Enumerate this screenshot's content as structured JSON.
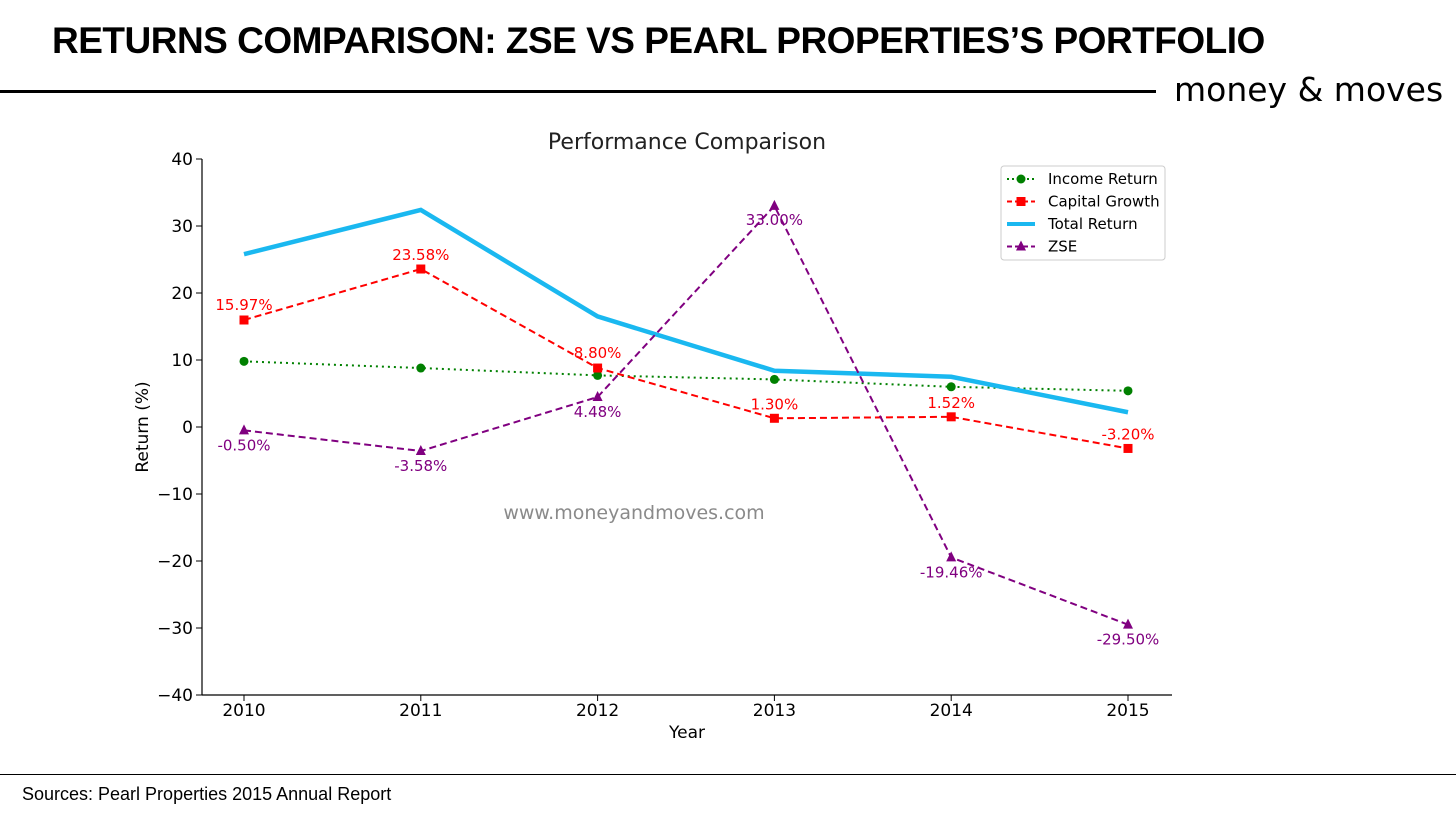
{
  "header": {
    "title": "RETURNS COMPARISON: ZSE VS PEARL PROPERTIES’S PORTFOLIO",
    "brand": "money & moves",
    "brand_accent_color": "#1a8fd6"
  },
  "footer": {
    "sources": "Sources: Pearl Properties 2015 Annual Report"
  },
  "watermark": "www.moneyandmoves.com",
  "chart_data": {
    "type": "line",
    "title": "Performance Comparison",
    "xlabel": "Year",
    "ylabel": "Return (%)",
    "categories": [
      "2010",
      "2011",
      "2012",
      "2013",
      "2014",
      "2015"
    ],
    "ylim": [
      -40,
      40
    ],
    "yticks": [
      "40",
      "30",
      "20",
      "10",
      "0",
      "−10",
      "−20",
      "−30",
      "−40"
    ],
    "ytick_values": [
      40,
      30,
      20,
      10,
      0,
      -10,
      -20,
      -30,
      -40
    ],
    "grid": false,
    "legend_position": "top-right",
    "series": [
      {
        "name": "Income Return",
        "values": [
          9.8,
          8.8,
          7.7,
          7.1,
          6.0,
          5.4
        ],
        "color": "#008000",
        "line_style": "dotted",
        "marker": "circle",
        "data_labels": []
      },
      {
        "name": "Capital Growth",
        "values": [
          15.97,
          23.58,
          8.8,
          1.3,
          1.52,
          -3.2
        ],
        "color": "#ff0000",
        "line_style": "dashed",
        "marker": "square",
        "data_labels": [
          "15.97%",
          "23.58%",
          "8.80%",
          "1.30%",
          "1.52%",
          "-3.20%"
        ]
      },
      {
        "name": "Total Return",
        "values": [
          25.8,
          32.4,
          16.5,
          8.4,
          7.5,
          2.2
        ],
        "color": "#1ab8f0",
        "line_style": "solid",
        "marker": "none",
        "data_labels": []
      },
      {
        "name": "ZSE",
        "values": [
          -0.5,
          -3.58,
          4.48,
          33.0,
          -19.46,
          -29.5
        ],
        "color": "#800080",
        "line_style": "dashed",
        "marker": "triangle",
        "data_labels": [
          "-0.50%",
          "-3.58%",
          "4.48%",
          "33.00%",
          "-19.46%",
          "-29.50%"
        ]
      }
    ]
  }
}
